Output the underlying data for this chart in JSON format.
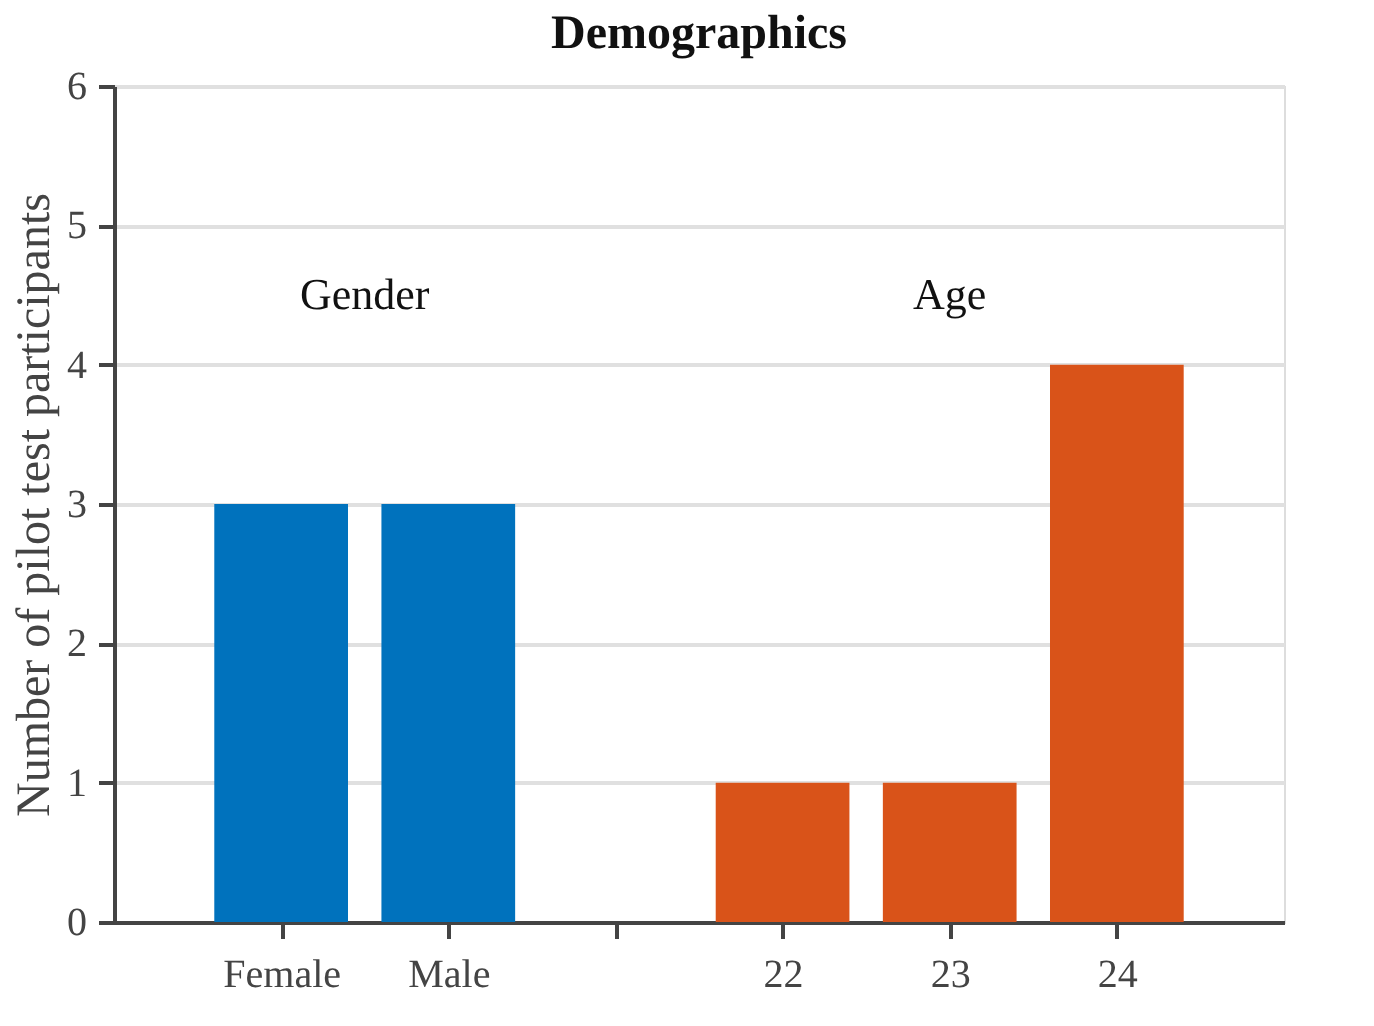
{
  "chart_data": {
    "type": "bar",
    "title": "Demographics",
    "ylabel": "Number of pilot test participants",
    "categories": [
      "Female",
      "Male",
      null,
      "22",
      "23",
      "24"
    ],
    "values": [
      3,
      3,
      null,
      1,
      1,
      4
    ],
    "colors": [
      "#0072bd",
      "#0072bd",
      null,
      "#d95319",
      "#d95319",
      "#d95319"
    ],
    "annotations": [
      "Gender",
      "Age"
    ],
    "ylim": [
      0,
      6
    ],
    "yticks": [
      0,
      1,
      2,
      3,
      4,
      5,
      6
    ],
    "grid": "y"
  }
}
